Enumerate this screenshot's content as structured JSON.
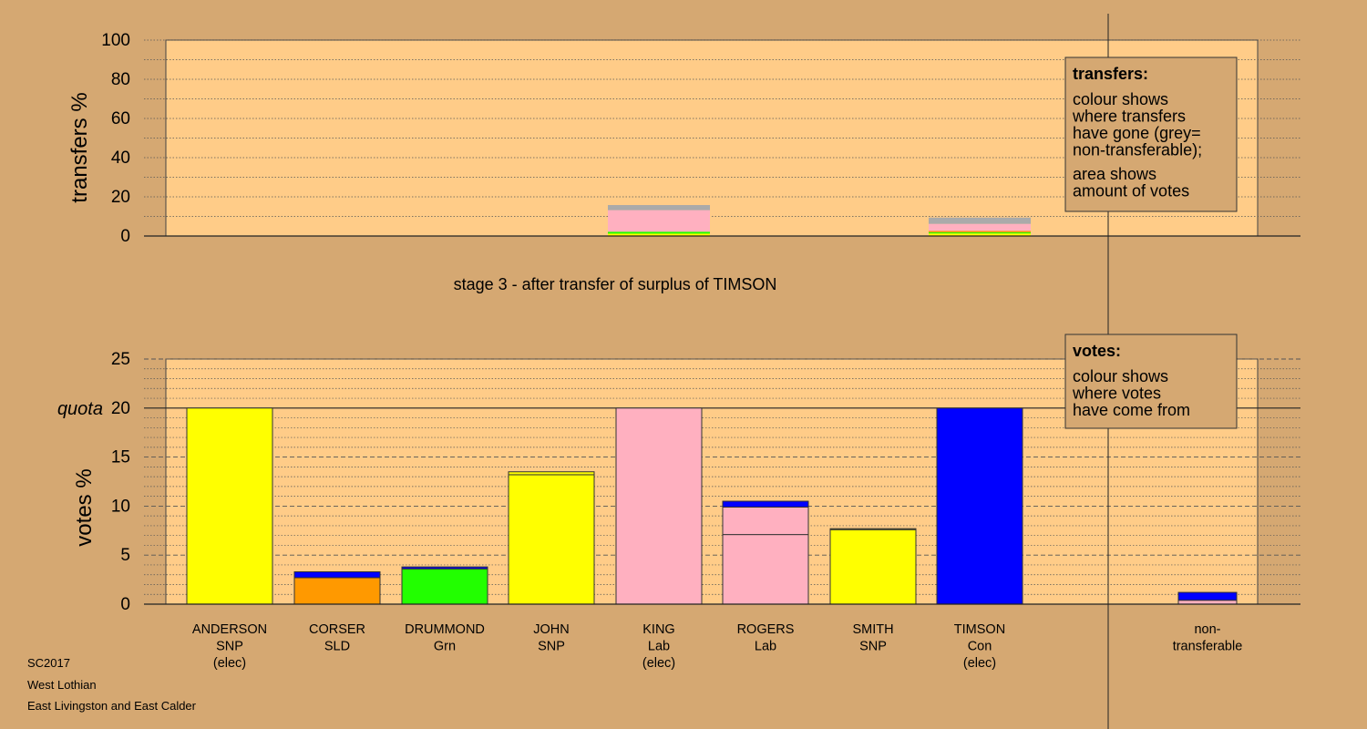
{
  "stage_title": "stage 3 - after transfer of surplus of TIMSON",
  "footer": [
    "SC2017",
    "West Lothian",
    "East Livingston and East Calder"
  ],
  "colors": {
    "background": "#d5a872",
    "plot_area": "#ffcc88",
    "SNP": "#ffff00",
    "Lab": "#ffb0c0",
    "Con": "#0000ff",
    "SLD": "#ff9900",
    "Grn": "#22ff00",
    "non_transferable": "#aaaaaa"
  },
  "chart_data": [
    {
      "type": "bar",
      "id": "transfers",
      "ylabel": "transfers %",
      "ylim": [
        0,
        100
      ],
      "yticks": [
        0,
        20,
        40,
        60,
        80,
        100
      ],
      "legend": {
        "title": "transfers:",
        "lines": [
          "colour shows",
          "where transfers",
          "have gone (grey=",
          "non-transferable);",
          "area shows",
          "amount of votes"
        ],
        "placement": "top-right"
      },
      "bars": [
        {
          "candidate_index": 4,
          "segments": [
            {
              "color_key": "SNP",
              "value": 1.2
            },
            {
              "color_key": "Grn",
              "value": 1.0
            },
            {
              "color_key": "Lab",
              "value": 11.0
            },
            {
              "color_key": "non_transferable",
              "value": 2.6
            }
          ]
        },
        {
          "candidate_index": 7,
          "segments": [
            {
              "color_key": "SNP",
              "value": 1.3
            },
            {
              "color_key": "Grn",
              "value": 0.6
            },
            {
              "color_key": "SLD",
              "value": 0.7
            },
            {
              "color_key": "Lab",
              "value": 3.6
            },
            {
              "color_key": "non_transferable",
              "value": 3.2
            }
          ]
        }
      ]
    },
    {
      "type": "bar",
      "id": "votes",
      "ylabel": "votes %",
      "ylim": [
        0,
        25
      ],
      "yticks": [
        0,
        5,
        10,
        15,
        20,
        25
      ],
      "quota": 20,
      "quota_label": "quota",
      "legend": {
        "title": "votes:",
        "lines": [
          "colour shows",
          "where votes",
          "have come from"
        ],
        "placement": "top-right"
      },
      "categories": [
        [
          "ANDERSON",
          "SNP",
          "(elec)"
        ],
        [
          "CORSER",
          "SLD"
        ],
        [
          "DRUMMOND",
          "Grn"
        ],
        [
          "JOHN",
          "SNP"
        ],
        [
          "KING",
          "Lab",
          "(elec)"
        ],
        [
          "ROGERS",
          "Lab"
        ],
        [
          "SMITH",
          "SNP"
        ],
        [
          "TIMSON",
          "Con",
          "(elec)"
        ],
        [
          "non-",
          "transferable"
        ]
      ],
      "bars": [
        {
          "segments": [
            {
              "color_key": "SNP",
              "value": 20.0
            }
          ]
        },
        {
          "segments": [
            {
              "color_key": "SLD",
              "value": 2.7
            },
            {
              "color_key": "Con",
              "value": 0.6
            }
          ]
        },
        {
          "segments": [
            {
              "color_key": "Grn",
              "value": 3.6
            },
            {
              "color_key": "Con",
              "value": 0.2
            }
          ]
        },
        {
          "segments": [
            {
              "color_key": "SNP",
              "value": 13.2
            },
            {
              "color_key": "SNP",
              "value": 0.3
            }
          ]
        },
        {
          "segments": [
            {
              "color_key": "Lab",
              "value": 20.0
            }
          ]
        },
        {
          "segments": [
            {
              "color_key": "Lab",
              "value": 7.1
            },
            {
              "color_key": "Lab",
              "value": 2.8
            },
            {
              "color_key": "Con",
              "value": 0.6
            }
          ]
        },
        {
          "segments": [
            {
              "color_key": "SNP",
              "value": 7.6
            },
            {
              "color_key": "SNP",
              "value": 0.1
            }
          ]
        },
        {
          "segments": [
            {
              "color_key": "Con",
              "value": 20.0
            }
          ]
        },
        {
          "segments": [
            {
              "color_key": "Lab",
              "value": 0.4
            },
            {
              "color_key": "Con",
              "value": 0.8
            }
          ]
        }
      ]
    }
  ]
}
